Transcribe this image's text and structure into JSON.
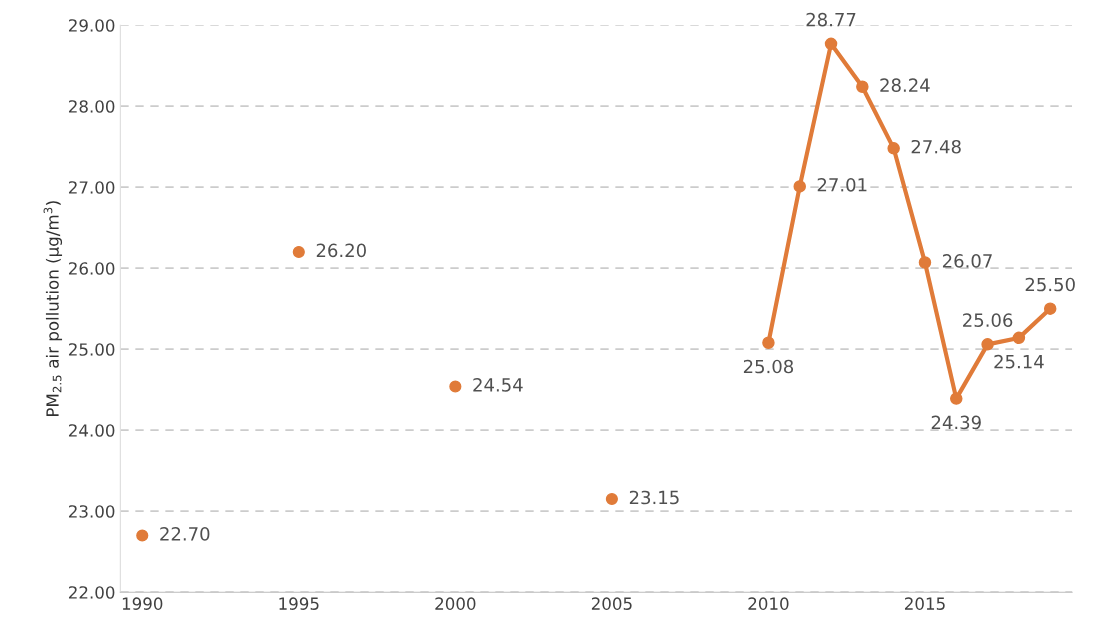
{
  "chart_data": {
    "type": "scatter",
    "ylabel": "PM$_{2.5}$ air pollution (µg/m$^{3}$)",
    "series": [
      {
        "color": "#e07b39",
        "x": [
          1990,
          1995,
          2000,
          2005
        ],
        "values": [
          22.7,
          26.2,
          24.54,
          23.15
        ],
        "value_labels": [
          "22.70",
          "26.20",
          "24.54",
          "23.15"
        ]
      },
      {
        "type": "line",
        "color": "#e07b39",
        "x": [
          2010,
          2011,
          2012,
          2013,
          2014,
          2015,
          2016,
          2017,
          2018,
          2019
        ],
        "values": [
          25.08,
          27.01,
          28.77,
          28.24,
          27.48,
          26.07,
          24.39,
          25.06,
          25.14,
          25.5
        ],
        "value_labels": [
          "25.08",
          "27.01",
          "28.77",
          "28.24",
          "27.48",
          "26.07",
          "24.39",
          "25.06",
          "25.14",
          "25.50"
        ]
      }
    ],
    "xlim": [
      1989.3,
      2019.7
    ],
    "xticks": [
      1990,
      1995,
      2000,
      2005,
      2010,
      2015
    ],
    "ylim": [
      22.0,
      29.0
    ],
    "yticks": [
      {
        "value": 22,
        "label": "22.00"
      },
      {
        "value": 23,
        "label": "23.00"
      },
      {
        "value": 24,
        "label": "24.00"
      },
      {
        "value": 25,
        "label": "25.00"
      },
      {
        "value": 26,
        "label": "26.00"
      },
      {
        "value": 27,
        "label": "27.00"
      },
      {
        "value": 28,
        "label": "28.00"
      },
      {
        "value": 29,
        "label": "29.00"
      }
    ],
    "grid": "y",
    "marker": "circle",
    "line_style": "solid"
  }
}
